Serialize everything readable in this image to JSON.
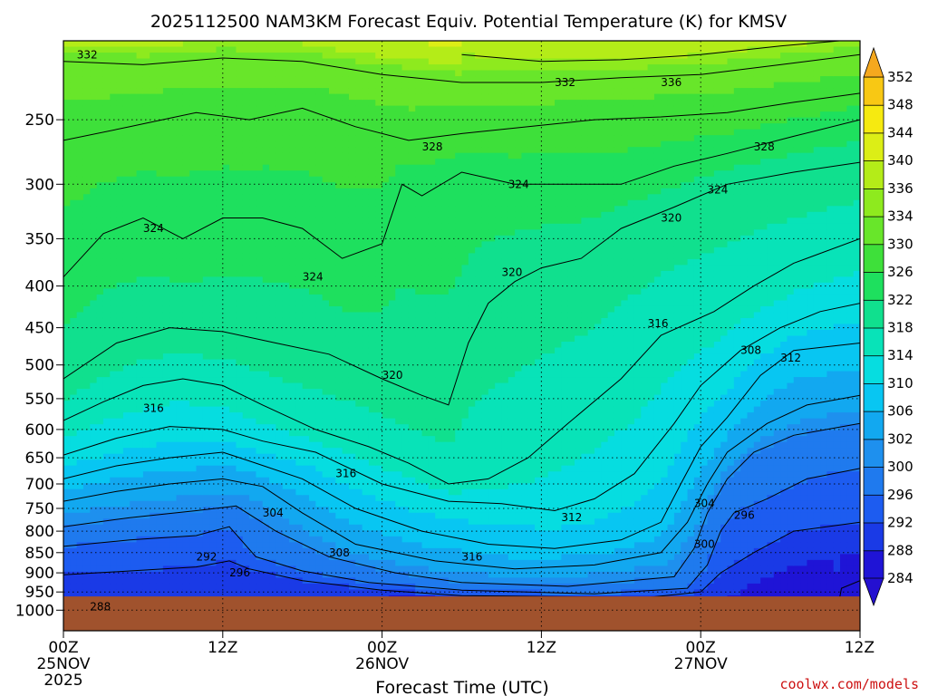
{
  "chart_data": {
    "type": "heatmap",
    "title": "2025112500 NAM3KM Forecast Equiv. Potential Temperature (K) for KMSV",
    "xlabel": "Forecast Time (UTC)",
    "ylabel": "",
    "credit": "coolwx.com/models",
    "x_ticks": [
      {
        "hour": 0,
        "lines": [
          "00Z",
          "25NOV",
          "2025"
        ]
      },
      {
        "hour": 12,
        "lines": [
          "12Z"
        ]
      },
      {
        "hour": 24,
        "lines": [
          "00Z",
          "26NOV"
        ]
      },
      {
        "hour": 36,
        "lines": [
          "12Z"
        ]
      },
      {
        "hour": 48,
        "lines": [
          "00Z",
          "27NOV"
        ]
      },
      {
        "hour": 60,
        "lines": [
          "12Z"
        ]
      }
    ],
    "xlim": [
      0,
      60
    ],
    "ylim": [
      1060,
      200
    ],
    "y_scale": "log",
    "y_ticks": [
      250,
      300,
      350,
      400,
      450,
      500,
      550,
      600,
      650,
      700,
      750,
      800,
      850,
      900,
      950,
      1000
    ],
    "grid": true,
    "colorbar": {
      "levels": [
        284,
        288,
        292,
        296,
        300,
        302,
        306,
        310,
        314,
        318,
        322,
        326,
        330,
        334,
        336,
        340,
        344,
        348,
        352
      ],
      "colors": [
        "#1f14d6",
        "#1a3ae6",
        "#1d5cf0",
        "#1f7aee",
        "#1e90ee",
        "#12a8f0",
        "#08c6f2",
        "#06dde0",
        "#08e3b8",
        "#10e08e",
        "#1ee05e",
        "#3ee03a",
        "#68e62a",
        "#8eea1e",
        "#b4ec18",
        "#dcee16",
        "#f6ea10",
        "#f8c814",
        "#f5a81e"
      ],
      "extend": "both"
    },
    "contours": [
      {
        "level": 284,
        "points": [
          [
            58.2,
            1020
          ],
          [
            58.6,
            940
          ],
          [
            60,
            920
          ]
        ]
      },
      {
        "level": 288,
        "points": [
          [
            0,
            990
          ],
          [
            6,
            988
          ],
          [
            14,
            975
          ],
          [
            22,
            968
          ],
          [
            28,
            966
          ]
        ]
      },
      {
        "level": 292,
        "points": [
          [
            0,
            905
          ],
          [
            5,
            895
          ],
          [
            10,
            885
          ],
          [
            12.5,
            870
          ],
          [
            14,
            890
          ],
          [
            18,
            920
          ],
          [
            24,
            945
          ],
          [
            30,
            960
          ],
          [
            44,
            965
          ],
          [
            48,
            950
          ],
          [
            49.5,
            900
          ],
          [
            52,
            850
          ],
          [
            55,
            800
          ],
          [
            60,
            780
          ]
        ]
      },
      {
        "level": 296,
        "points": [
          [
            0,
            835
          ],
          [
            5,
            820
          ],
          [
            10,
            810
          ],
          [
            12.5,
            790
          ],
          [
            14.5,
            860
          ],
          [
            18,
            895
          ],
          [
            23,
            925
          ],
          [
            30,
            945
          ],
          [
            40,
            955
          ],
          [
            47,
            940
          ],
          [
            48.5,
            880
          ],
          [
            49.5,
            800
          ],
          [
            50.5,
            760
          ],
          [
            53,
            730
          ],
          [
            56,
            690
          ],
          [
            60,
            670
          ]
        ]
      },
      {
        "level": 300,
        "points": [
          [
            0,
            790
          ],
          [
            5,
            770
          ],
          [
            10,
            755
          ],
          [
            13,
            745
          ],
          [
            16,
            800
          ],
          [
            20,
            860
          ],
          [
            25,
            900
          ],
          [
            30,
            925
          ],
          [
            38,
            935
          ],
          [
            46,
            910
          ],
          [
            47.5,
            840
          ],
          [
            48.5,
            760
          ],
          [
            50,
            690
          ],
          [
            52,
            640
          ],
          [
            55,
            610
          ],
          [
            60,
            590
          ]
        ]
      },
      {
        "level": 304,
        "points": [
          [
            0,
            735
          ],
          [
            4,
            715
          ],
          [
            8,
            700
          ],
          [
            12,
            690
          ],
          [
            15,
            705
          ],
          [
            18,
            760
          ],
          [
            22,
            830
          ],
          [
            28,
            870
          ],
          [
            34,
            890
          ],
          [
            40,
            880
          ],
          [
            45,
            850
          ],
          [
            47,
            780
          ],
          [
            48.5,
            700
          ],
          [
            50,
            640
          ],
          [
            53,
            590
          ],
          [
            56,
            560
          ],
          [
            60,
            545
          ]
        ]
      },
      {
        "level": 308,
        "points": [
          [
            0,
            690
          ],
          [
            4,
            665
          ],
          [
            8,
            650
          ],
          [
            12,
            640
          ],
          [
            14.5,
            660
          ],
          [
            18,
            690
          ],
          [
            22,
            750
          ],
          [
            27,
            800
          ],
          [
            32,
            830
          ],
          [
            37,
            840
          ],
          [
            42,
            820
          ],
          [
            45,
            780
          ],
          [
            46.5,
            700
          ],
          [
            48,
            630
          ],
          [
            50,
            580
          ],
          [
            52.5,
            515
          ],
          [
            55,
            480
          ],
          [
            60,
            470
          ]
        ]
      },
      {
        "level": 312,
        "points": [
          [
            0,
            645
          ],
          [
            4,
            615
          ],
          [
            8,
            595
          ],
          [
            12,
            600
          ],
          [
            15,
            620
          ],
          [
            19,
            640
          ],
          [
            24,
            700
          ],
          [
            29,
            735
          ],
          [
            33,
            740
          ],
          [
            37,
            755
          ],
          [
            40,
            730
          ],
          [
            43,
            680
          ],
          [
            46,
            590
          ],
          [
            48,
            530
          ],
          [
            51,
            480
          ],
          [
            54,
            450
          ],
          [
            57,
            430
          ],
          [
            60,
            420
          ]
        ]
      },
      {
        "level": 316,
        "points": [
          [
            0,
            585
          ],
          [
            3,
            555
          ],
          [
            6,
            530
          ],
          [
            9,
            520
          ],
          [
            12,
            530
          ],
          [
            15,
            560
          ],
          [
            19,
            600
          ],
          [
            23,
            630
          ],
          [
            26,
            660
          ],
          [
            29,
            700
          ],
          [
            32,
            690
          ],
          [
            35,
            650
          ],
          [
            38,
            590
          ],
          [
            42,
            520
          ],
          [
            45,
            460
          ],
          [
            49,
            430
          ],
          [
            52,
            400
          ],
          [
            55,
            375
          ],
          [
            60,
            350
          ]
        ]
      },
      {
        "level": 320,
        "points": [
          [
            0,
            520
          ],
          [
            4,
            470
          ],
          [
            8,
            450
          ],
          [
            12,
            455
          ],
          [
            16,
            470
          ],
          [
            20,
            485
          ],
          [
            24,
            520
          ],
          [
            27,
            545
          ],
          [
            29,
            560
          ],
          [
            30.5,
            470
          ],
          [
            32,
            420
          ],
          [
            34,
            395
          ],
          [
            36,
            380
          ],
          [
            39,
            370
          ],
          [
            42,
            340
          ],
          [
            46,
            320
          ],
          [
            50,
            300
          ],
          [
            55,
            290
          ],
          [
            60,
            282
          ]
        ]
      },
      {
        "level": 324,
        "points": [
          [
            0,
            390
          ],
          [
            3,
            345
          ],
          [
            6,
            330
          ],
          [
            9,
            350
          ],
          [
            12,
            330
          ],
          [
            15,
            330
          ],
          [
            18,
            340
          ],
          [
            21,
            370
          ],
          [
            24,
            355
          ],
          [
            25.5,
            300
          ],
          [
            27,
            310
          ],
          [
            30,
            290
          ],
          [
            34,
            300
          ],
          [
            38,
            300
          ],
          [
            42,
            300
          ],
          [
            46,
            285
          ],
          [
            50,
            275
          ],
          [
            55,
            262
          ],
          [
            60,
            250
          ]
        ]
      },
      {
        "level": 328,
        "points": [
          [
            0,
            265
          ],
          [
            5,
            255
          ],
          [
            10,
            245
          ],
          [
            14,
            250
          ],
          [
            18,
            242
          ],
          [
            22,
            255
          ],
          [
            26,
            265
          ],
          [
            30,
            260
          ],
          [
            35,
            255
          ],
          [
            40,
            250
          ],
          [
            45,
            248
          ],
          [
            50,
            245
          ],
          [
            55,
            238
          ],
          [
            60,
            232
          ]
        ]
      },
      {
        "level": 332,
        "points": [
          [
            0,
            212
          ],
          [
            6,
            214
          ],
          [
            12,
            210
          ],
          [
            18,
            212
          ],
          [
            24,
            220
          ],
          [
            30,
            225
          ],
          [
            36,
            225
          ],
          [
            42,
            222
          ],
          [
            48,
            220
          ],
          [
            54,
            214
          ],
          [
            60,
            208
          ]
        ]
      },
      {
        "level": 336,
        "points": [
          [
            30,
            208
          ],
          [
            36,
            212
          ],
          [
            42,
            211
          ],
          [
            48,
            208
          ],
          [
            54,
            203
          ],
          [
            60,
            199
          ]
        ]
      },
      {
        "level": 340,
        "points": [
          [
            36,
            200
          ],
          [
            42,
            200
          ],
          [
            48,
            198
          ],
          [
            54,
            195
          ],
          [
            60,
            192
          ]
        ]
      },
      {
        "level": 344,
        "points": [
          [
            44,
            192
          ],
          [
            50,
            190
          ],
          [
            55,
            188
          ],
          [
            60,
            186
          ]
        ]
      }
    ],
    "contour_labels": [
      {
        "text": "332",
        "x": 1.0,
        "y": 208
      },
      {
        "text": "332",
        "x": 37.0,
        "y": 225
      },
      {
        "text": "336",
        "x": 45.0,
        "y": 225
      },
      {
        "text": "328",
        "x": 27.0,
        "y": 270
      },
      {
        "text": "328",
        "x": 52.0,
        "y": 270
      },
      {
        "text": "324",
        "x": 33.5,
        "y": 300
      },
      {
        "text": "324",
        "x": 48.5,
        "y": 305
      },
      {
        "text": "320",
        "x": 45.0,
        "y": 330
      },
      {
        "text": "324",
        "x": 6.0,
        "y": 340
      },
      {
        "text": "324",
        "x": 18.0,
        "y": 390
      },
      {
        "text": "320",
        "x": 33.0,
        "y": 385
      },
      {
        "text": "316",
        "x": 44.0,
        "y": 445
      },
      {
        "text": "308",
        "x": 51.0,
        "y": 480
      },
      {
        "text": "312",
        "x": 54.0,
        "y": 490
      },
      {
        "text": "320",
        "x": 24.0,
        "y": 515
      },
      {
        "text": "316",
        "x": 6.0,
        "y": 565
      },
      {
        "text": "316",
        "x": 20.5,
        "y": 680
      },
      {
        "text": "304",
        "x": 15.0,
        "y": 760
      },
      {
        "text": "304",
        "x": 47.5,
        "y": 740
      },
      {
        "text": "296",
        "x": 50.5,
        "y": 765
      },
      {
        "text": "312",
        "x": 37.5,
        "y": 770
      },
      {
        "text": "300",
        "x": 47.5,
        "y": 830
      },
      {
        "text": "308",
        "x": 20.0,
        "y": 850
      },
      {
        "text": "316",
        "x": 30.0,
        "y": 860
      },
      {
        "text": "292",
        "x": 10.0,
        "y": 860
      },
      {
        "text": "296",
        "x": 12.5,
        "y": 900
      },
      {
        "text": "288",
        "x": 2.0,
        "y": 990
      }
    ],
    "terrain": {
      "surface_pressure": 962,
      "color": "#a0522d"
    }
  }
}
